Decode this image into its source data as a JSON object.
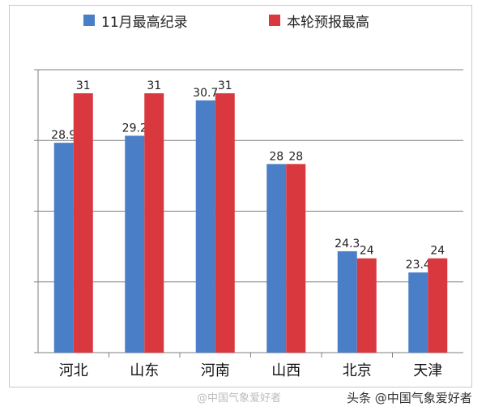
{
  "chart_data": {
    "type": "bar",
    "categories": [
      "河北",
      "山东",
      "河南",
      "山西",
      "北京",
      "天津"
    ],
    "series": [
      {
        "name": "11月最高纪录",
        "color": "#4a7ec6",
        "values": [
          28.9,
          29.2,
          30.7,
          28,
          24.3,
          23.4
        ],
        "labels": [
          "28.9",
          "29.2",
          "30.7",
          "28",
          "24.3",
          "23.4"
        ]
      },
      {
        "name": "本轮预报最高",
        "color": "#d9383f",
        "values": [
          31,
          31,
          31,
          28,
          24,
          24
        ],
        "labels": [
          "31",
          "31",
          "31",
          "28",
          "24",
          "24"
        ]
      }
    ],
    "ylim": [
      20,
      32
    ],
    "grid": true,
    "legend_position": "top"
  },
  "watermarks": {
    "left": "@中国气象爱好者",
    "right": "头条 @中国气象爱好者"
  }
}
